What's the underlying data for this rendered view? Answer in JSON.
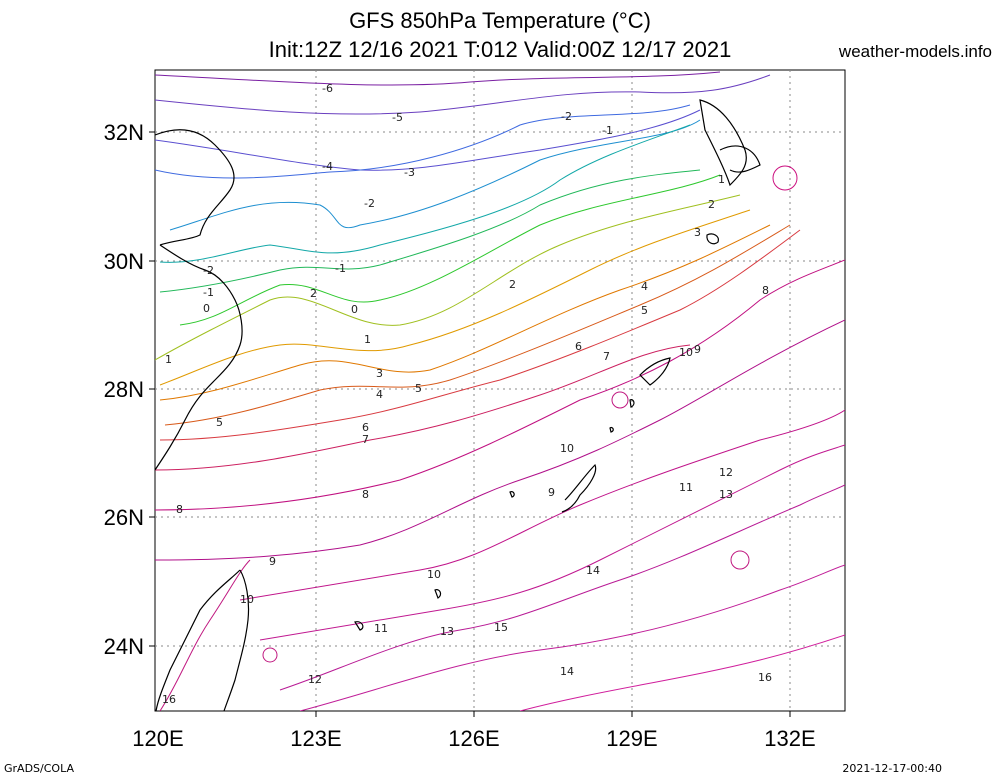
{
  "title": {
    "line1": "GFS 850hPa Temperature (°C)",
    "line2": "Init:12Z 12/16 2021 T:012 Valid:00Z 12/17 2021"
  },
  "site": "weather-models.info",
  "footer": {
    "left": "GrADS/COLA",
    "right": "2021-12-17-00:40"
  },
  "axes": {
    "lon_ticks": [
      "120E",
      "123E",
      "126E",
      "129E",
      "132E"
    ],
    "lat_ticks": [
      "24N",
      "26N",
      "28N",
      "30N",
      "32N"
    ]
  },
  "contour_labels": [
    "-6",
    "-5",
    "-4",
    "-3",
    "-2",
    "-2",
    "-2",
    "-1",
    "-1",
    "-1",
    "0",
    "0",
    "1",
    "1",
    "1",
    "2",
    "2",
    "2",
    "3",
    "3",
    "4",
    "4",
    "5",
    "5",
    "5",
    "6",
    "6",
    "7",
    "7",
    "8",
    "8",
    "8",
    "9",
    "9",
    "9",
    "10",
    "10",
    "10",
    "10",
    "11",
    "11",
    "12",
    "12",
    "13",
    "13",
    "14",
    "14",
    "15",
    "16",
    "16"
  ],
  "colors": {
    "cold": "#6a0dad",
    "cool": "#1e90ff",
    "mild": "#2ec82e",
    "warm": "#e08a00",
    "hot": "#cc0077",
    "coast": "#000000",
    "grid": "#888888"
  }
}
